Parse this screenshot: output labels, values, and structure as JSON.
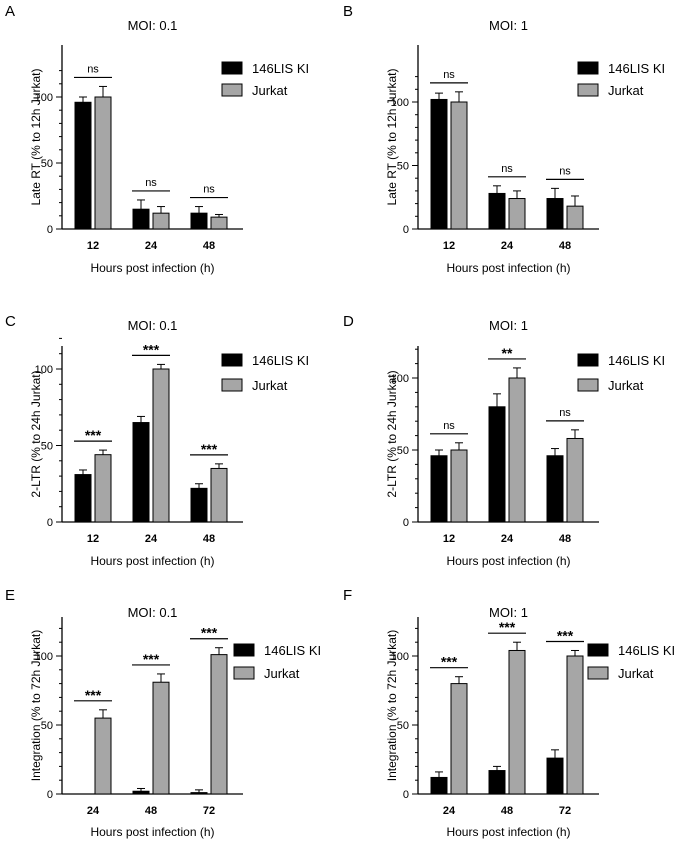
{
  "colors": {
    "ki": "#000000",
    "jurkat": "#a6a6a6",
    "axis": "#000000"
  },
  "legend": [
    "146LIS KI",
    "Jurkat"
  ],
  "chart_data": [
    {
      "panel": "A",
      "type": "bar",
      "title": "MOI: 0.1",
      "xlabel": "Hours post infection (h)",
      "ylabel": "Late RT (% to 12h Jurkat)",
      "categories": [
        "12",
        "24",
        "48"
      ],
      "ylim": [
        0,
        120
      ],
      "yticks": [
        "0",
        "50",
        "100"
      ],
      "series": [
        {
          "name": "146LIS KI",
          "values": [
            96,
            15,
            12
          ],
          "errors": [
            4,
            7,
            5
          ]
        },
        {
          "name": "Jurkat",
          "values": [
            100,
            12,
            9
          ],
          "errors": [
            8,
            5,
            2
          ]
        }
      ],
      "significance": [
        "ns",
        "ns",
        "ns"
      ]
    },
    {
      "panel": "B",
      "type": "bar",
      "title": "MOI: 1",
      "xlabel": "Hours post infection (h)",
      "ylabel": "Late RT (% to 12h Jurkat)",
      "categories": [
        "12",
        "24",
        "48"
      ],
      "ylim": [
        0,
        120
      ],
      "yticks": [
        "0",
        "50",
        "100"
      ],
      "series": [
        {
          "name": "146LIS KI",
          "values": [
            102,
            28,
            24
          ],
          "errors": [
            5,
            6,
            8
          ]
        },
        {
          "name": "Jurkat",
          "values": [
            100,
            24,
            18
          ],
          "errors": [
            8,
            6,
            8
          ]
        }
      ],
      "significance": [
        "ns",
        "ns",
        "ns"
      ]
    },
    {
      "panel": "C",
      "type": "bar",
      "title": "MOI: 0.1",
      "xlabel": "Hours post infection (h)",
      "ylabel": "2-LTR (% to 24h Jurkat)",
      "categories": [
        "12",
        "24",
        "48"
      ],
      "ylim": [
        0,
        120
      ],
      "yticks": [
        "0",
        "50",
        "100"
      ],
      "series": [
        {
          "name": "146LIS KI",
          "values": [
            31,
            65,
            22
          ],
          "errors": [
            3,
            4,
            3
          ]
        },
        {
          "name": "Jurkat",
          "values": [
            44,
            100,
            35
          ],
          "errors": [
            3,
            3,
            3
          ]
        }
      ],
      "significance": [
        "***",
        "***",
        "***"
      ]
    },
    {
      "panel": "D",
      "type": "bar",
      "title": "MOI: 1",
      "xlabel": "Hours post infection (h)",
      "ylabel": "2-LTR (% to 24h Jurkat)",
      "categories": [
        "12",
        "24",
        "48"
      ],
      "ylim": [
        0,
        120
      ],
      "yticks": [
        "0",
        "50",
        "100"
      ],
      "series": [
        {
          "name": "146LIS KI",
          "values": [
            46,
            80,
            46
          ],
          "errors": [
            4,
            9,
            5
          ]
        },
        {
          "name": "Jurkat",
          "values": [
            50,
            100,
            58
          ],
          "errors": [
            5,
            7,
            6
          ]
        }
      ],
      "significance": [
        "ns",
        "**",
        "ns"
      ]
    },
    {
      "panel": "E",
      "type": "bar",
      "title": "MOI: 0.1",
      "xlabel": "Hours post infection (h)",
      "ylabel": "Integration (% to 72h Jurkat)",
      "categories": [
        "24",
        "48",
        "72"
      ],
      "ylim": [
        0,
        120
      ],
      "yticks": [
        "0",
        "50",
        "100"
      ],
      "series": [
        {
          "name": "146LIS KI",
          "values": [
            0,
            2,
            1
          ],
          "errors": [
            0,
            2,
            2
          ]
        },
        {
          "name": "Jurkat",
          "values": [
            55,
            81,
            101
          ],
          "errors": [
            6,
            6,
            5
          ]
        }
      ],
      "significance": [
        "***",
        "***",
        "***"
      ]
    },
    {
      "panel": "F",
      "type": "bar",
      "title": "MOI: 1",
      "xlabel": "Hours post infection (h)",
      "ylabel": "Integration (% to 72h Jurkat)",
      "categories": [
        "24",
        "48",
        "72"
      ],
      "ylim": [
        0,
        120
      ],
      "yticks": [
        "0",
        "50",
        "100"
      ],
      "series": [
        {
          "name": "146LIS KI",
          "values": [
            12,
            17,
            26
          ],
          "errors": [
            4,
            3,
            6
          ]
        },
        {
          "name": "Jurkat",
          "values": [
            80,
            104,
            100
          ],
          "errors": [
            5,
            6,
            4
          ]
        }
      ],
      "significance": [
        "***",
        "***",
        "***"
      ]
    }
  ]
}
